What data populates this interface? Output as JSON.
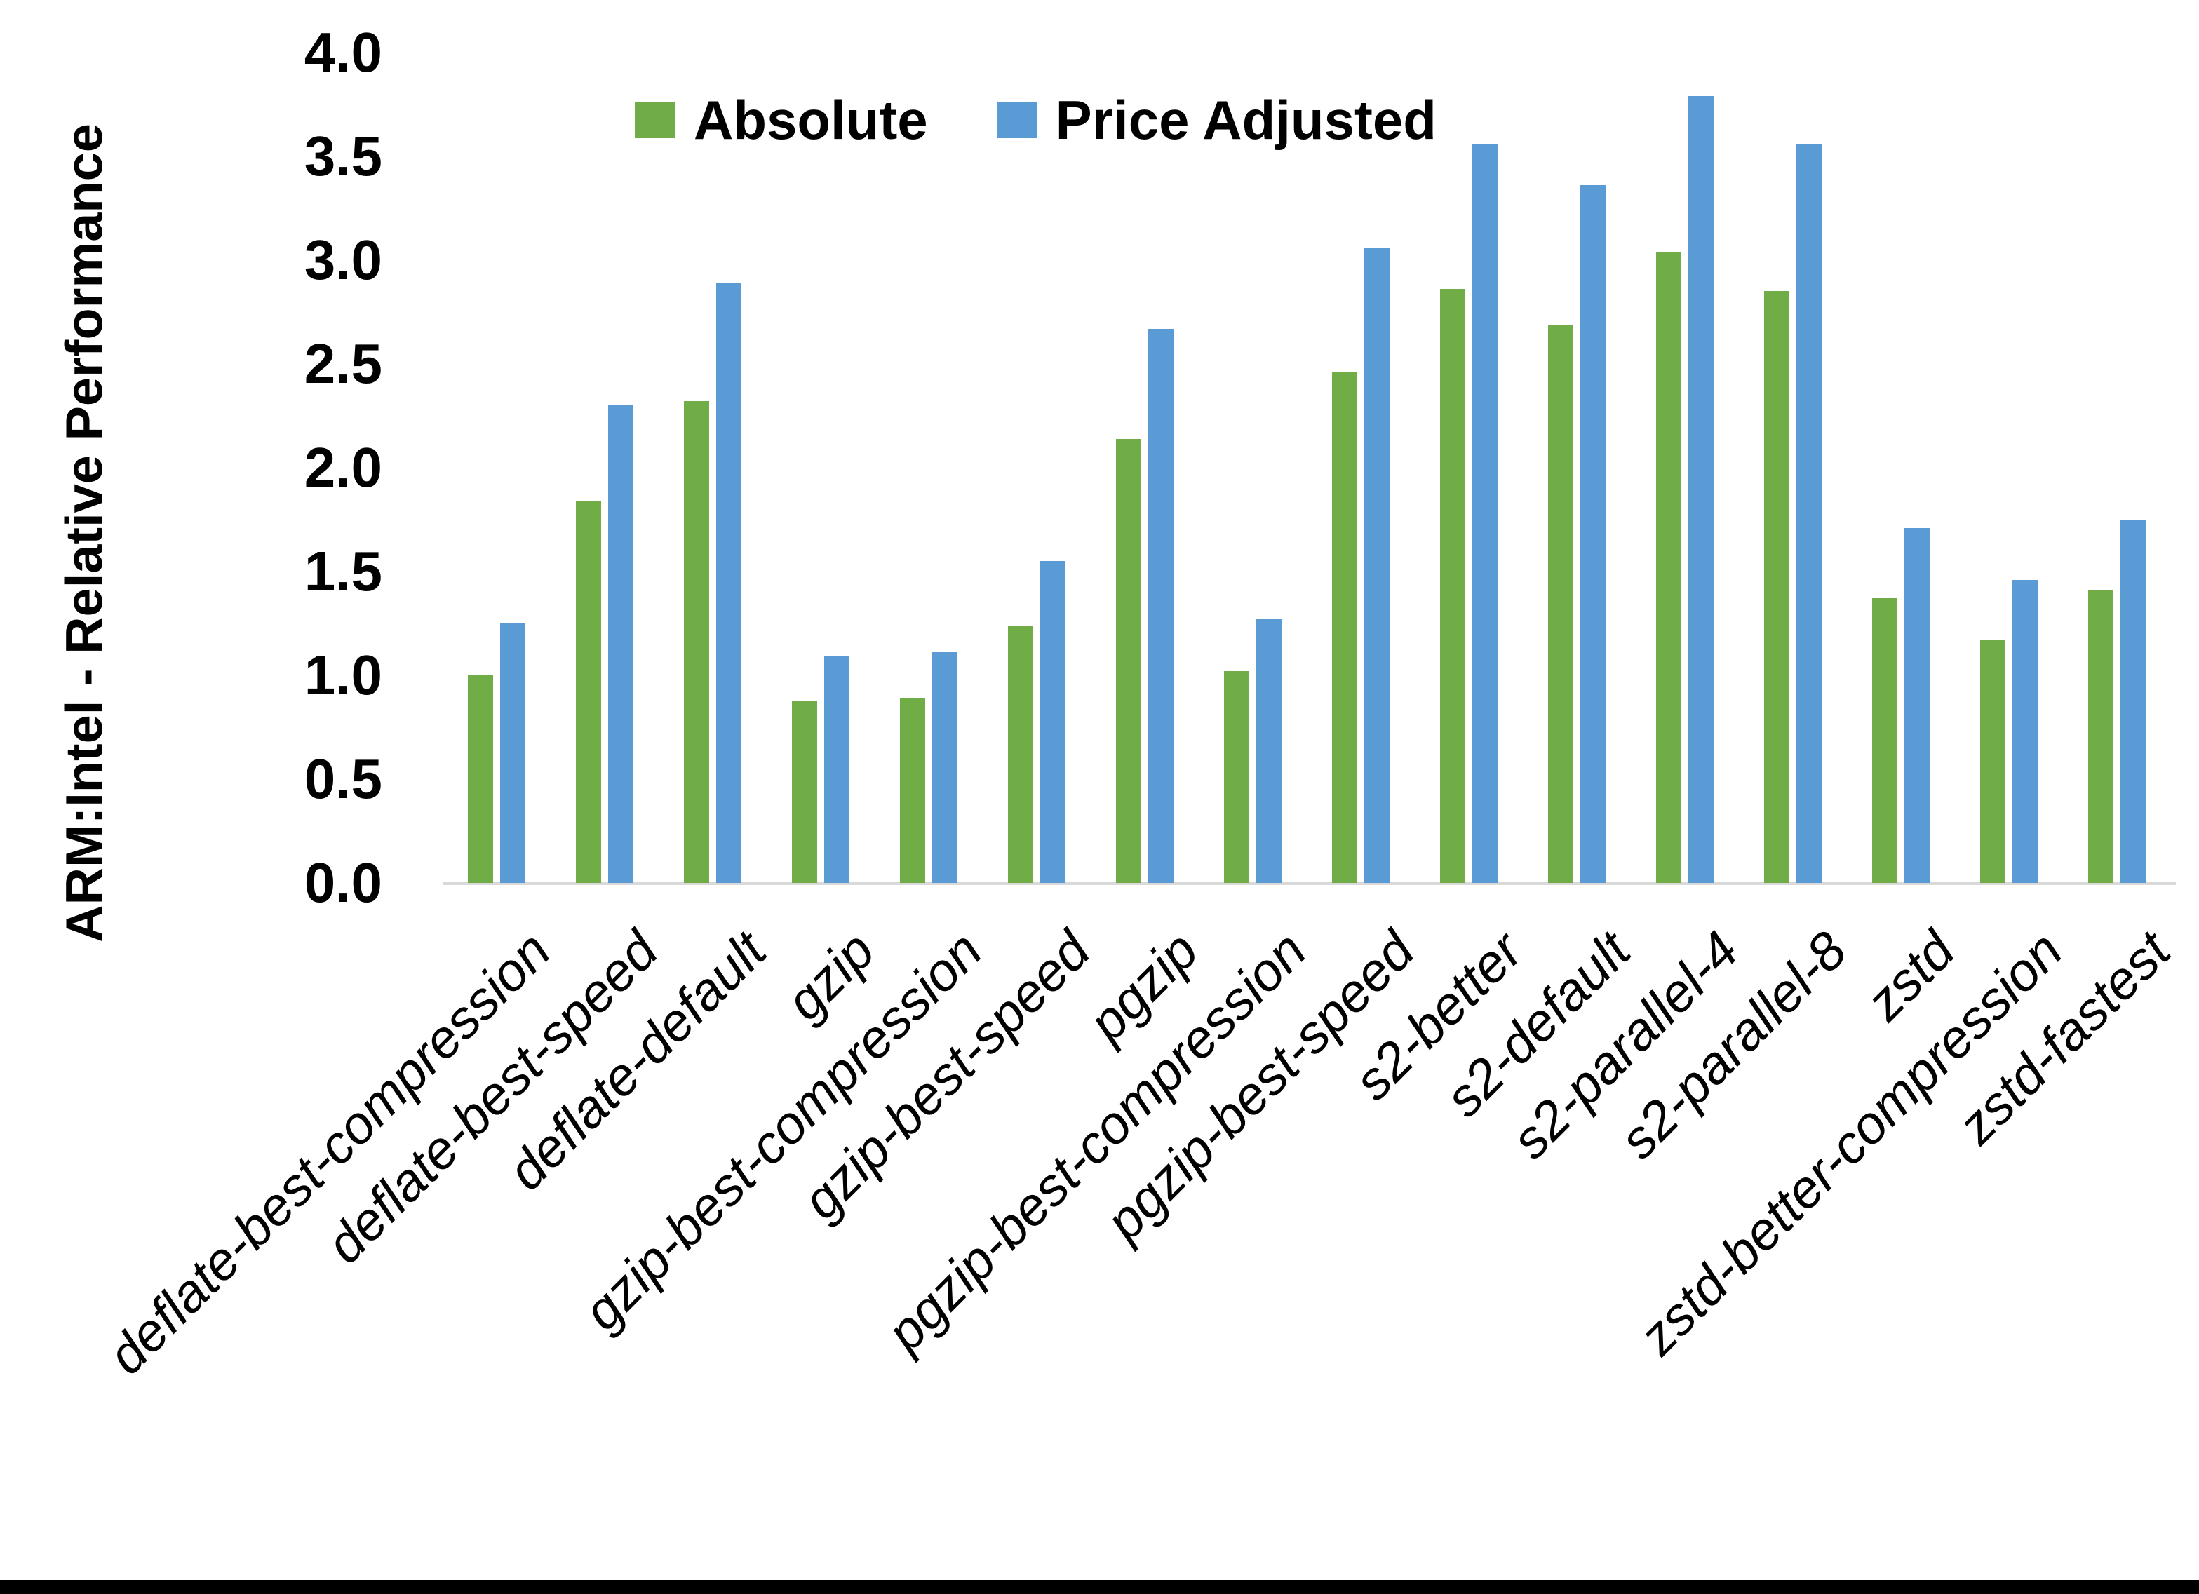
{
  "chart_data": {
    "type": "bar",
    "title": "",
    "xlabel": "",
    "ylabel": "ARM:Intel - Relative Performance",
    "ylim": [
      0.0,
      4.0
    ],
    "ytick_step": 0.5,
    "ytick_labels": [
      "0.0",
      "0.5",
      "1.0",
      "1.5",
      "2.0",
      "2.5",
      "3.0",
      "3.5",
      "4.0"
    ],
    "grid": false,
    "legend_position": "top-center",
    "categories": [
      "deflate-best-compression",
      "deflate-best-speed",
      "deflate-default",
      "gzip",
      "gzip-best-compression",
      "gzip-best-speed",
      "pgzip",
      "pgzip-best-compression",
      "pgzip-best-speed",
      "s2-better",
      "s2-default",
      "s2-parallel-4",
      "s2-parallel-8",
      "zstd",
      "zstd-better-compression",
      "zstd-fastest"
    ],
    "series": [
      {
        "name": "Absolute",
        "color": "#70AD47",
        "values": [
          1.0,
          1.84,
          2.32,
          0.88,
          0.89,
          1.24,
          2.14,
          1.02,
          2.46,
          2.86,
          2.69,
          3.04,
          2.85,
          1.37,
          1.17,
          1.41
        ]
      },
      {
        "name": "Price Adjusted",
        "color": "#5B9BD5",
        "values": [
          1.25,
          2.3,
          2.89,
          1.09,
          1.11,
          1.55,
          2.67,
          1.27,
          3.06,
          3.56,
          3.36,
          3.79,
          3.56,
          1.71,
          1.46,
          1.75
        ]
      }
    ],
    "axis_line_color": "#D9D9D9",
    "text_color": "#000000"
  },
  "frame": {
    "bottom_bar_color": "#000000"
  }
}
